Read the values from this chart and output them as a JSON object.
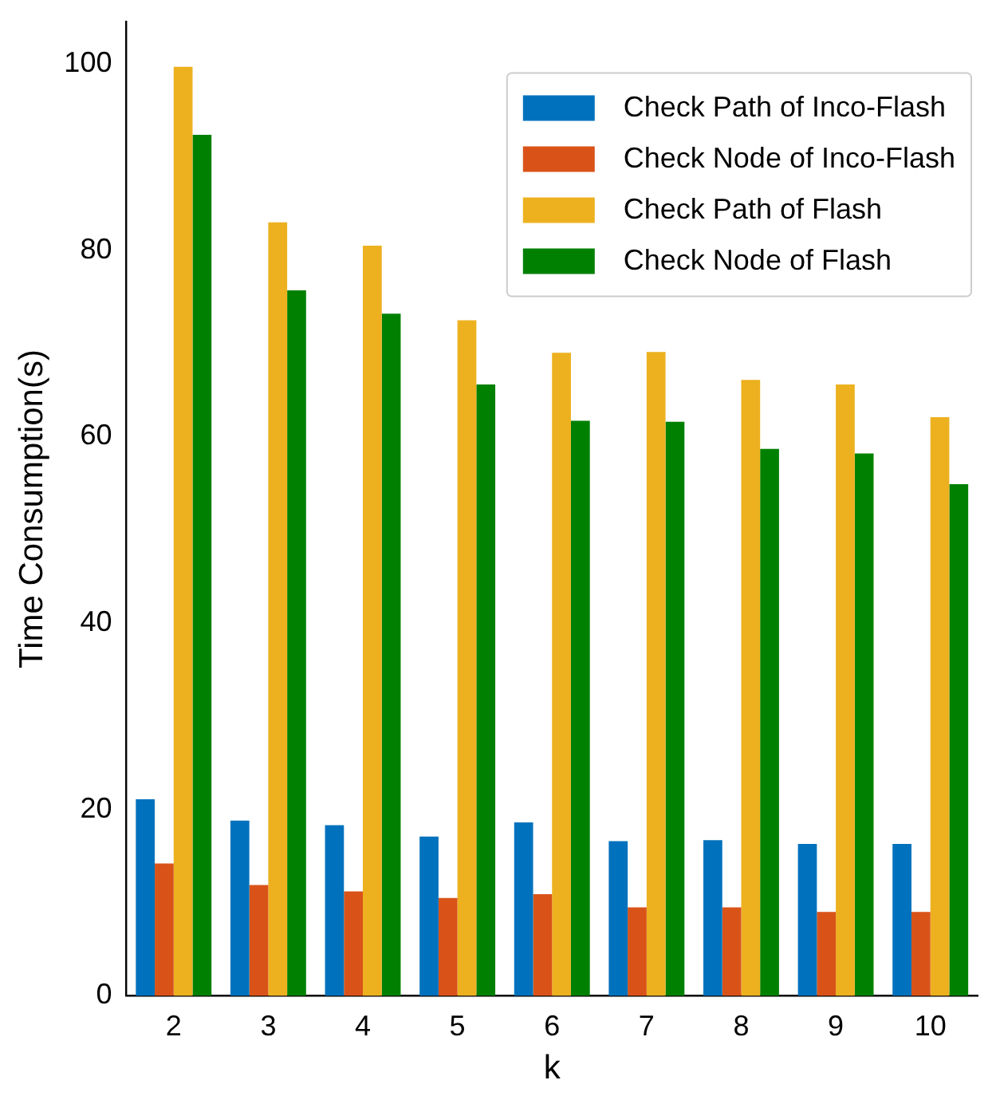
{
  "chart_data": {
    "type": "bar",
    "xlabel": "k",
    "ylabel": "Time Consumption(s)",
    "categories": [
      "2",
      "3",
      "4",
      "5",
      "6",
      "7",
      "8",
      "9",
      "10"
    ],
    "series": [
      {
        "name": "Check Path of Inco-Flash",
        "color": "#0072bd",
        "values": [
          21.1,
          18.8,
          18.3,
          17.1,
          18.6,
          16.6,
          16.7,
          16.3,
          16.3
        ]
      },
      {
        "name": "Check Node of Inco-Flash",
        "color": "#d95319",
        "values": [
          14.2,
          11.9,
          11.2,
          10.5,
          10.9,
          9.5,
          9.5,
          9.0,
          9.0
        ]
      },
      {
        "name": "Check Path of Flash",
        "color": "#edb120",
        "values": [
          99.7,
          83.0,
          80.5,
          72.5,
          69.0,
          69.1,
          66.1,
          65.6,
          62.1
        ]
      },
      {
        "name": "Check Node of Flash",
        "color": "#008000",
        "values": [
          92.4,
          75.7,
          73.2,
          65.6,
          61.7,
          61.6,
          58.7,
          58.2,
          54.9
        ]
      }
    ],
    "ylim": [
      0,
      104.5
    ],
    "yticks": [
      0,
      20,
      40,
      60,
      80,
      100
    ],
    "grid": false,
    "legend": "top right"
  }
}
